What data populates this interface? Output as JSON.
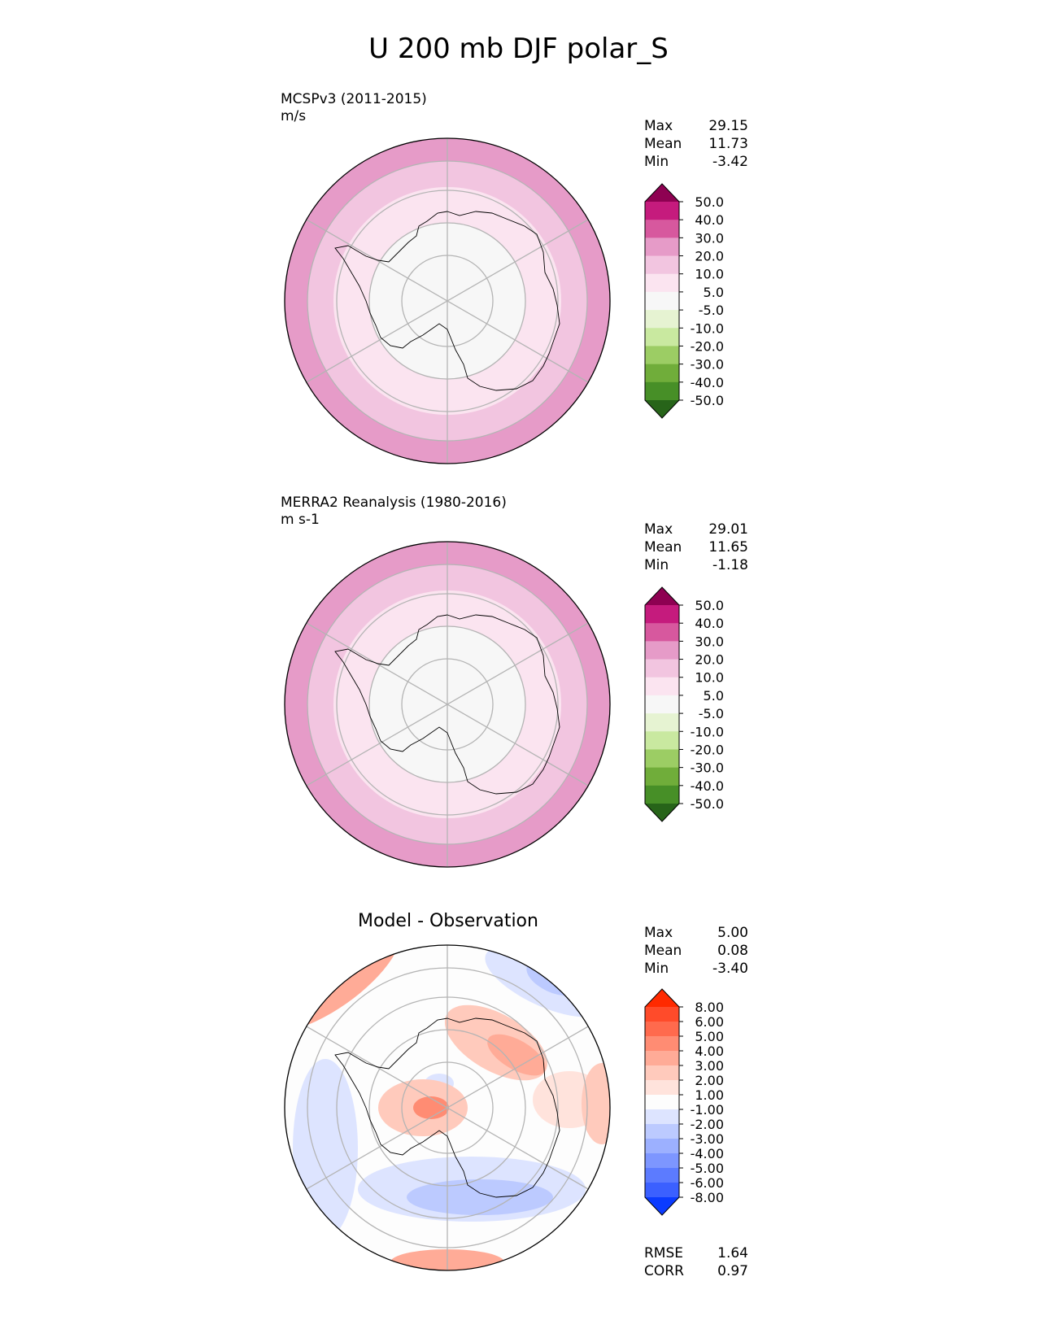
{
  "title": "U 200 mb DJF polar_S",
  "colorbar_palettes": {
    "wind": [
      "#8e0152",
      "#c51b7d",
      "#d7589e",
      "#e69bc8",
      "#f2c5e0",
      "#fbe4f0",
      "#f7f7f7",
      "#e6f3d2",
      "#c9e9a0",
      "#9ccd64",
      "#70ad3a",
      "#478f27",
      "#276419"
    ],
    "diff": [
      "#ff2a00",
      "#ff4b2a",
      "#ff6a4d",
      "#ff8c73",
      "#ffab97",
      "#ffcabc",
      "#ffe3dc",
      "#fdfdfd",
      "#dde4ff",
      "#bccaff",
      "#9cb0ff",
      "#7d96ff",
      "#5c7bff",
      "#3b60ff",
      "#0b3bff"
    ]
  },
  "panels": [
    {
      "id": "test",
      "title": "MCSPv3 (2011-2015)",
      "units": "m/s",
      "stats": [
        [
          "Max",
          "29.15"
        ],
        [
          "Mean",
          "11.73"
        ],
        [
          "Min",
          "-3.42"
        ]
      ],
      "colorbar_labels": [
        "50.0",
        "40.0",
        "30.0",
        "20.0",
        "10.0",
        "5.0",
        "-5.0",
        "-10.0",
        "-20.0",
        "-30.0",
        "-40.0",
        "-50.0"
      ],
      "palette": "wind",
      "rings": [
        "#e69bc8",
        "#f2c5e0",
        "#fbe4f0",
        "#f7f7f7"
      ],
      "ring_values": [
        25,
        15,
        7.5,
        0
      ]
    },
    {
      "id": "ref",
      "title": "MERRA2 Reanalysis (1980-2016)",
      "units": "m s-1",
      "stats": [
        [
          "Max",
          "29.01"
        ],
        [
          "Mean",
          "11.65"
        ],
        [
          "Min",
          "-1.18"
        ]
      ],
      "colorbar_labels": [
        "50.0",
        "40.0",
        "30.0",
        "20.0",
        "10.0",
        "5.0",
        "-5.0",
        "-10.0",
        "-20.0",
        "-30.0",
        "-40.0",
        "-50.0"
      ],
      "palette": "wind",
      "rings": [
        "#e69bc8",
        "#f2c5e0",
        "#fbe4f0",
        "#f7f7f7"
      ],
      "ring_values": [
        25,
        15,
        7.5,
        0
      ]
    },
    {
      "id": "diff",
      "title": "Model - Observation",
      "units": "",
      "stats": [
        [
          "Max",
          "5.00"
        ],
        [
          "Mean",
          "0.08"
        ],
        [
          "Min",
          "-3.40"
        ]
      ],
      "colorbar_labels": [
        "8.00",
        "6.00",
        "5.00",
        "4.00",
        "3.00",
        "2.00",
        "1.00",
        "-1.00",
        "-2.00",
        "-3.00",
        "-4.00",
        "-5.00",
        "-6.00",
        "-8.00"
      ],
      "palette": "diff",
      "rings": [
        "#fdfdfd"
      ],
      "ring_values": [
        0
      ],
      "metrics": [
        [
          "RMSE",
          "1.64"
        ],
        [
          "CORR",
          "0.97"
        ]
      ]
    }
  ]
}
